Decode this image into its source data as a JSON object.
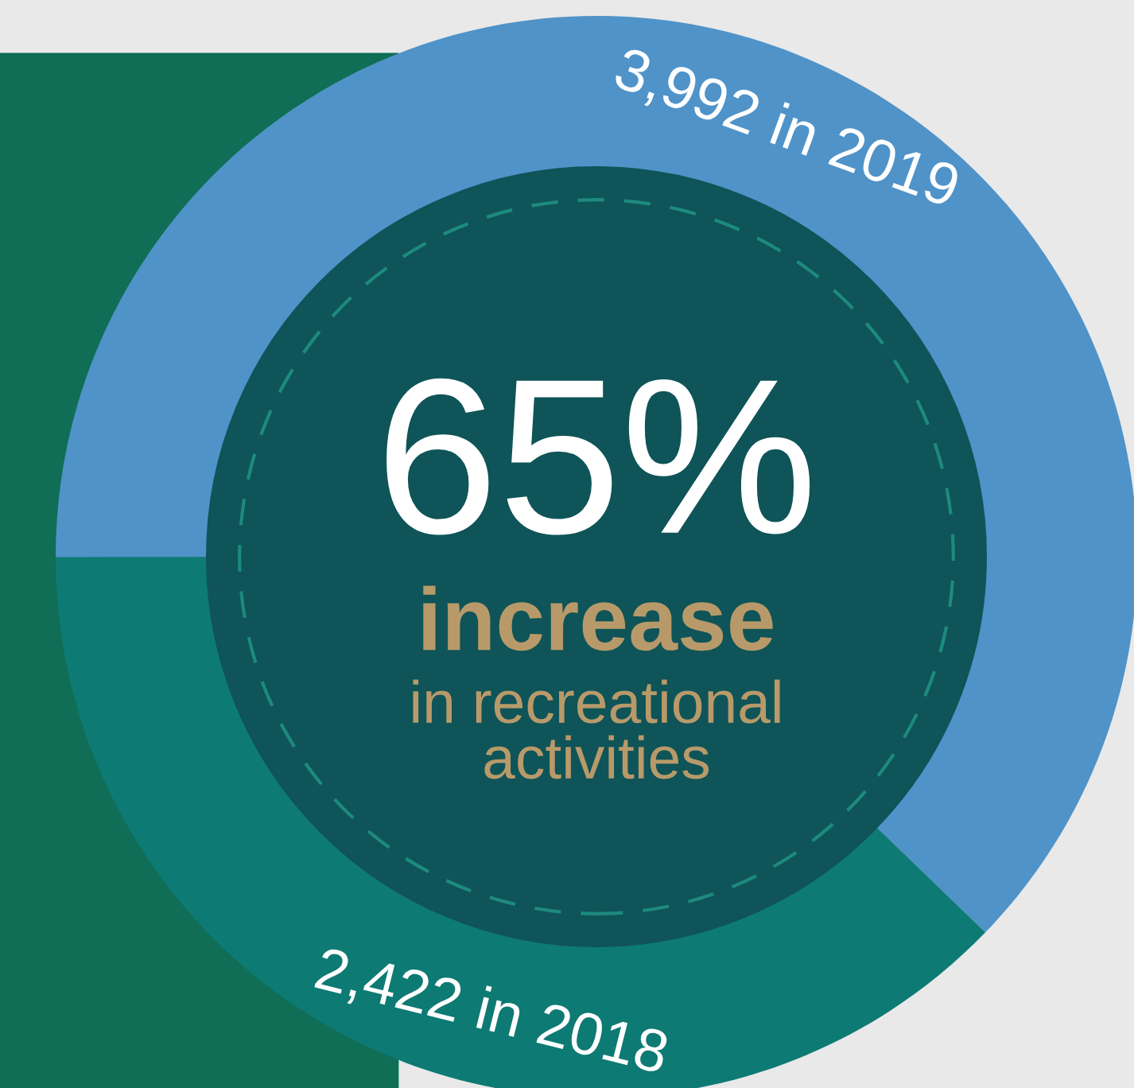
{
  "chart_data": {
    "type": "donut",
    "categories": [
      null,
      null
    ],
    "values": [
      3992,
      2422
    ],
    "colors": [
      "#4f93c9",
      "#0e7a74"
    ],
    "value_labels": [
      "3,992 in 2019",
      "2,422 in 2018"
    ],
    "legend": false,
    "annotations": [
      "65%",
      "increase",
      "in recreational\nactivities"
    ]
  }
}
